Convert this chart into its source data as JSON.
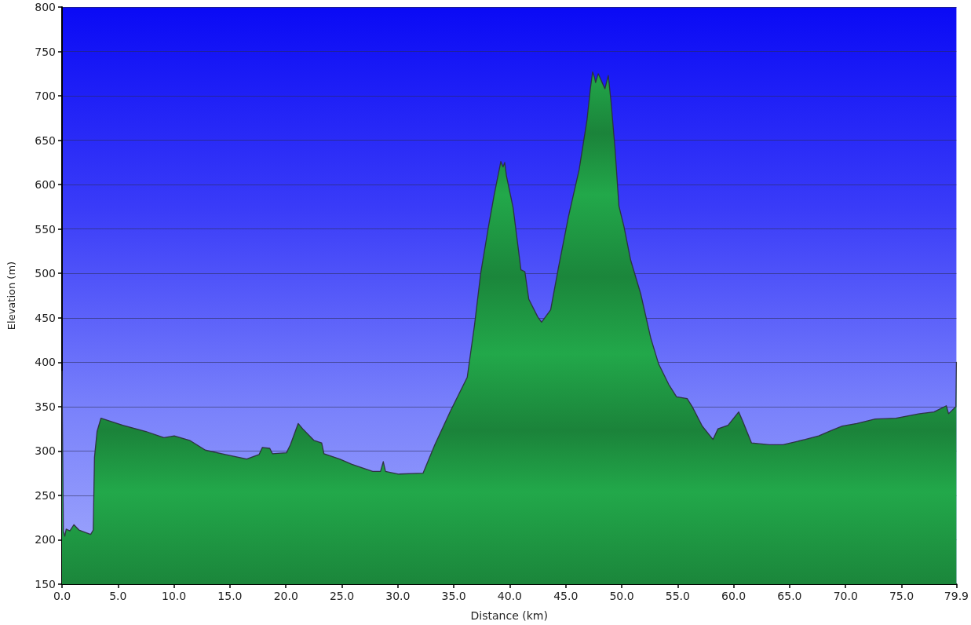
{
  "chart_data": {
    "type": "area",
    "xlabel": "Distance (km)",
    "ylabel": "Elevation (m)",
    "x": [
      0,
      0.12,
      0.25,
      0.37,
      0.7,
      1.06,
      1.52,
      2.56,
      2.79,
      2.9,
      3.13,
      3.48,
      5.43,
      7.5,
      9.1,
      10.03,
      11.4,
      12.8,
      14.6,
      16.5,
      17.6,
      17.9,
      18.56,
      18.8,
      20.05,
      20.4,
      21.1,
      21.5,
      22.5,
      23.2,
      23.4,
      24.8,
      25.9,
      27.76,
      28.45,
      28.7,
      28.9,
      30.06,
      32.25,
      33.3,
      34.7,
      36.2,
      36.85,
      37.4,
      38.1,
      38.6,
      39.2,
      39.4,
      39.55,
      39.7,
      40.3,
      41.0,
      41.35,
      41.7,
      42.5,
      42.84,
      43.65,
      44.34,
      45.26,
      46.2,
      46.9,
      47.2,
      47.4,
      47.56,
      47.67,
      47.9,
      48.25,
      48.5,
      48.8,
      49.05,
      49.4,
      49.75,
      50.2,
      50.8,
      51.7,
      52.6,
      53.3,
      54.2,
      54.9,
      55.85,
      56.3,
      57.2,
      58.15,
      58.6,
      59.5,
      60.45,
      60.8,
      61.6,
      63.2,
      64.4,
      66.4,
      67.6,
      68.7,
      69.7,
      71.0,
      72.65,
      74.5,
      76.6,
      77.9,
      79.0,
      79.2,
      79.85,
      79.9
    ],
    "values": [
      390,
      210,
      204,
      212,
      210,
      217,
      211,
      206,
      211,
      293,
      322,
      337,
      329,
      322,
      315,
      317,
      312,
      301,
      296,
      291,
      296,
      304,
      303,
      297,
      298,
      307,
      331,
      325,
      312,
      309,
      297,
      291,
      285,
      277,
      277,
      288,
      277,
      274,
      275,
      307,
      345,
      383,
      442,
      500,
      553,
      588,
      626,
      620,
      625,
      610,
      574,
      504,
      502,
      471,
      451,
      445,
      459,
      506,
      565,
      617,
      673,
      708,
      727,
      721,
      715,
      725,
      715,
      708,
      723,
      693,
      641,
      576,
      553,
      515,
      477,
      427,
      398,
      375,
      361,
      359,
      350,
      328,
      313,
      325,
      329,
      344,
      334,
      309,
      307,
      307,
      313,
      317,
      323,
      328,
      331,
      336,
      337,
      342,
      344,
      351,
      342,
      350,
      400
    ],
    "color": "#22a84a",
    "xlim": [
      0,
      79.9
    ],
    "xticks": [
      {
        "value": 0,
        "label": "0.0"
      },
      {
        "value": 5,
        "label": "5.0"
      },
      {
        "value": 10,
        "label": "10.0"
      },
      {
        "value": 15,
        "label": "15.0"
      },
      {
        "value": 20,
        "label": "20.0"
      },
      {
        "value": 25,
        "label": "25.0"
      },
      {
        "value": 30,
        "label": "30.0"
      },
      {
        "value": 35,
        "label": "35.0"
      },
      {
        "value": 40,
        "label": "40.0"
      },
      {
        "value": 45,
        "label": "45.0"
      },
      {
        "value": 50,
        "label": "50.0"
      },
      {
        "value": 55,
        "label": "55.0"
      },
      {
        "value": 60,
        "label": "60.0"
      },
      {
        "value": 65,
        "label": "65.0"
      },
      {
        "value": 70,
        "label": "70.0"
      },
      {
        "value": 75,
        "label": "75.0"
      },
      {
        "value": 79.9,
        "label": "79.9"
      }
    ],
    "ylim": [
      150,
      800
    ],
    "yticks": [
      150,
      200,
      250,
      300,
      350,
      400,
      450,
      500,
      550,
      600,
      650,
      700,
      750,
      800
    ],
    "grid": "y"
  }
}
